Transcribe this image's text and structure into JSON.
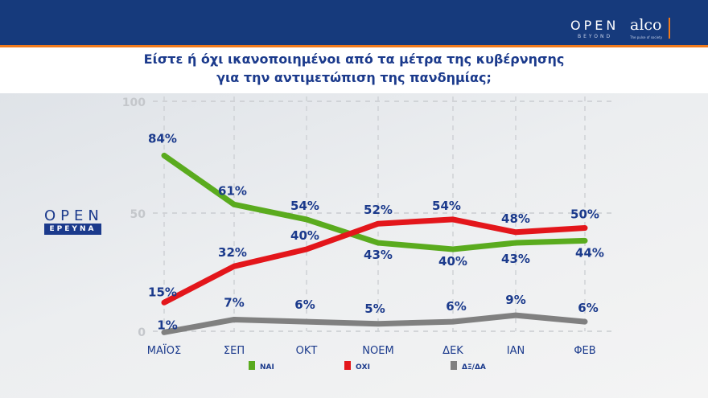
{
  "header": {
    "logo_open": "OPEN",
    "logo_beyond": "BEYOND",
    "logo_alco": "alco",
    "alco_tagline": "The pulse of society"
  },
  "title": [
    "Είστε ή όχι ικανοποιημένοι από τα μέτρα της κυβέρνησης",
    "για την αντιμετώπιση της πανδημίας;"
  ],
  "side_logo": {
    "open": "OPEN",
    "sub": "ΕΡΕΥΝΑ"
  },
  "chart_data": {
    "type": "line",
    "categories": [
      "ΜΑΪΟΣ",
      "ΣΕΠ",
      "ΟΚΤ",
      "ΝΟΕΜ",
      "ΔΕΚ",
      "ΙΑΝ",
      "ΦΕΒ"
    ],
    "ylim": [
      0,
      100
    ],
    "yticks": [
      0,
      50,
      100
    ],
    "grid": true,
    "legend_position": "bottom",
    "series": [
      {
        "name": "ΝΑΙ",
        "color": "#5aab1e",
        "values": [
          84,
          61,
          54,
          43,
          40,
          43,
          44
        ],
        "labels": [
          "84%",
          "61%",
          "54%",
          "43%",
          "40%",
          "43%",
          "44%"
        ]
      },
      {
        "name": "ΟΧΙ",
        "color": "#e3161b",
        "values": [
          15,
          32,
          40,
          52,
          54,
          48,
          50
        ],
        "labels": [
          "15%",
          "32%",
          "40%",
          "52%",
          "54%",
          "48%",
          "50%"
        ]
      },
      {
        "name": "ΔΞ/ΔΑ",
        "color": "#808080",
        "values": [
          1,
          7,
          6,
          5,
          6,
          9,
          6
        ],
        "labels": [
          "1%",
          "7%",
          "6%",
          "5%",
          "6%",
          "9%",
          "6%"
        ]
      }
    ]
  }
}
